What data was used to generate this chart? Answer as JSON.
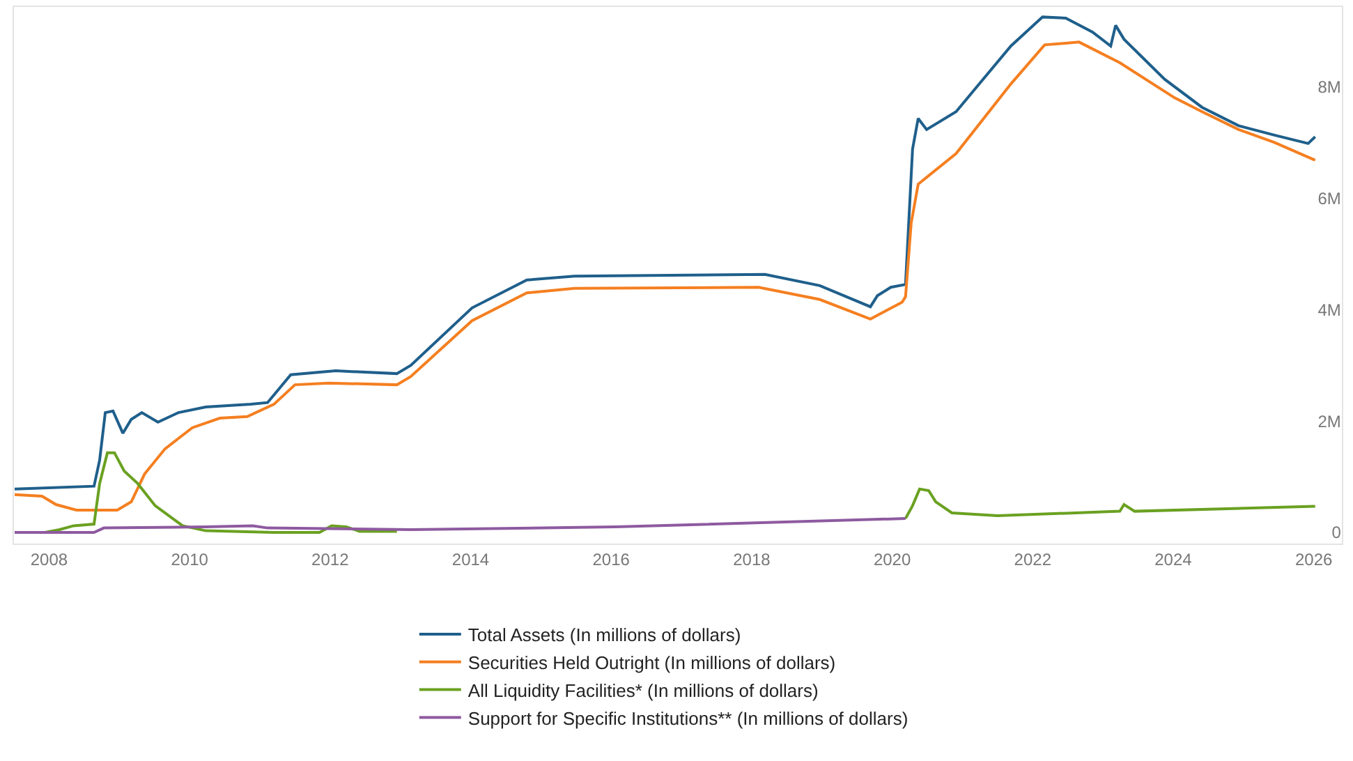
{
  "chart_data": {
    "type": "line",
    "xlim": [
      2007.5,
      2026.4
    ],
    "xticks": [
      2008,
      2010,
      2012,
      2014,
      2016,
      2018,
      2020,
      2022,
      2024,
      2026
    ],
    "ylim": [
      -200000,
      9430000
    ],
    "yticks": [
      {
        "value": 0,
        "label": "0"
      },
      {
        "value": 2000000,
        "label": "2M"
      },
      {
        "value": 4000000,
        "label": "4M"
      },
      {
        "value": 6000000,
        "label": "6M"
      },
      {
        "value": 8000000,
        "label": "8M"
      }
    ],
    "legend": "bottom",
    "marker": "none",
    "line_style": "solid",
    "series": [
      {
        "name": "Total Assets (In millions of dollars)",
        "color": "#1f5f8b",
        "x": [
          2007.51,
          2008.64,
          2008.72,
          2008.8,
          2008.91,
          2009.05,
          2009.17,
          2009.32,
          2009.55,
          2009.84,
          2010.23,
          2010.87,
          2011.11,
          2011.44,
          2012.08,
          2012.95,
          2013.15,
          2014.02,
          2014.8,
          2015.48,
          2018.19,
          2018.97,
          2019.69,
          2019.79,
          2019.98,
          2020.19,
          2020.29,
          2020.37,
          2020.49,
          2020.91,
          2021.24,
          2021.69,
          2022.14,
          2022.47,
          2022.85,
          2023.11,
          2023.18,
          2023.3,
          2023.88,
          2024.41,
          2024.93,
          2025.44,
          2025.92,
          2026.02
        ],
        "values": [
          780000,
          830000,
          1300000,
          2150000,
          2180000,
          1780000,
          2030000,
          2150000,
          1980000,
          2150000,
          2250000,
          2300000,
          2330000,
          2830000,
          2900000,
          2850000,
          3000000,
          4030000,
          4530000,
          4600000,
          4630000,
          4430000,
          4050000,
          4250000,
          4400000,
          4450000,
          6880000,
          7430000,
          7230000,
          7550000,
          8050000,
          8730000,
          9250000,
          9230000,
          8980000,
          8730000,
          9100000,
          8850000,
          8130000,
          7630000,
          7300000,
          7130000,
          6980000,
          7100000
        ]
      },
      {
        "name": "Securities Held Outright (In millions of dollars)",
        "color": "#f57f20",
        "x": [
          2007.51,
          2007.9,
          2008.1,
          2008.39,
          2008.97,
          2009.17,
          2009.36,
          2009.65,
          2010.04,
          2010.43,
          2010.82,
          2011.2,
          2011.5,
          2011.98,
          2012.95,
          2013.15,
          2014.02,
          2014.8,
          2015.48,
          2018.1,
          2018.97,
          2019.69,
          2019.84,
          2020.14,
          2020.19,
          2020.27,
          2020.37,
          2020.91,
          2021.69,
          2022.17,
          2022.66,
          2023.24,
          2024.02,
          2024.41,
          2024.93,
          2025.44,
          2026.02
        ],
        "values": [
          680000,
          650000,
          500000,
          400000,
          400000,
          550000,
          1050000,
          1500000,
          1880000,
          2050000,
          2080000,
          2300000,
          2650000,
          2680000,
          2650000,
          2800000,
          3800000,
          4300000,
          4380000,
          4400000,
          4180000,
          3830000,
          3930000,
          4130000,
          4230000,
          5550000,
          6250000,
          6800000,
          8050000,
          8750000,
          8800000,
          8430000,
          7800000,
          7550000,
          7230000,
          7000000,
          6680000
        ]
      },
      {
        "name": "All Liquidity Facilities* (In millions of dollars)",
        "color": "#6aa121",
        "x": [
          2007.94,
          2008.15,
          2008.35,
          2008.64,
          2008.72,
          2008.83,
          2008.93,
          2009.07,
          2009.26,
          2009.51,
          2009.9,
          2010.23,
          2011.2,
          2011.85,
          2012.02,
          2012.23,
          2012.42,
          2012.95,
          2016.0,
          2020.19,
          2020.29,
          2020.39,
          2020.52,
          2020.62,
          2020.85,
          2021.5,
          2023.24,
          2023.3,
          2023.45,
          2026.02
        ],
        "values": [
          0,
          50000,
          120000,
          150000,
          880000,
          1430000,
          1430000,
          1100000,
          880000,
          480000,
          120000,
          30000,
          0,
          0,
          120000,
          100000,
          20000,
          20000,
          null,
          250000,
          480000,
          780000,
          750000,
          550000,
          350000,
          300000,
          380000,
          500000,
          380000,
          470000
        ]
      },
      {
        "name": "Support for Specific Institutions** (In millions of dollars)",
        "color": "#8e5aa0",
        "x": [
          2007.51,
          2008.64,
          2008.78,
          2010.23,
          2010.9,
          2011.11,
          2013.15,
          2016.06,
          2020.19
        ],
        "values": [
          0,
          0,
          80000,
          100000,
          120000,
          80000,
          50000,
          100000,
          250000
        ]
      }
    ]
  }
}
